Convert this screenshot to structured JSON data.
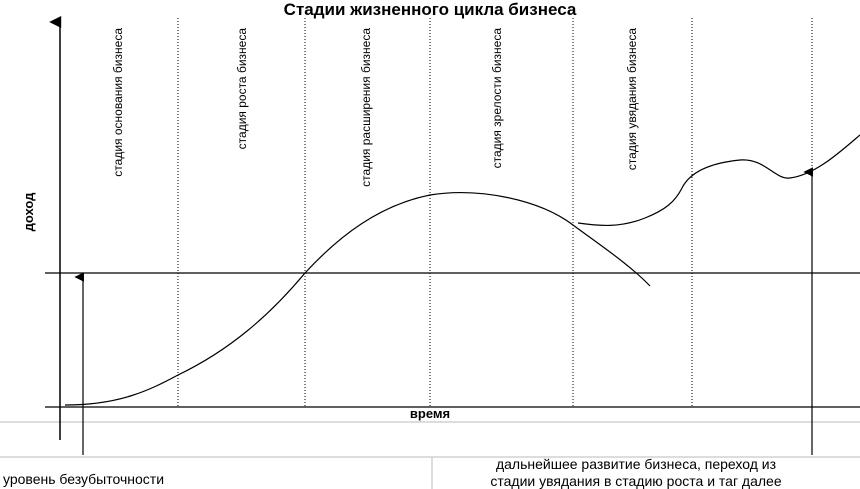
{
  "title": "Стадии жизненного цикла бизнеса",
  "y_label": "доход",
  "x_label": "время",
  "stages": [
    "стадия основания бизнеса",
    "стадия роста бизнеса",
    "стадия расширения бизнеса",
    "стадия зрелости бизнеса",
    "стадия увядания бизнеса"
  ],
  "notes": [
    "уровень безубыточности",
    "дальнейшее развитие бизнеса, переход из",
    "стадии увядания в стадию роста и таг далее"
  ]
}
